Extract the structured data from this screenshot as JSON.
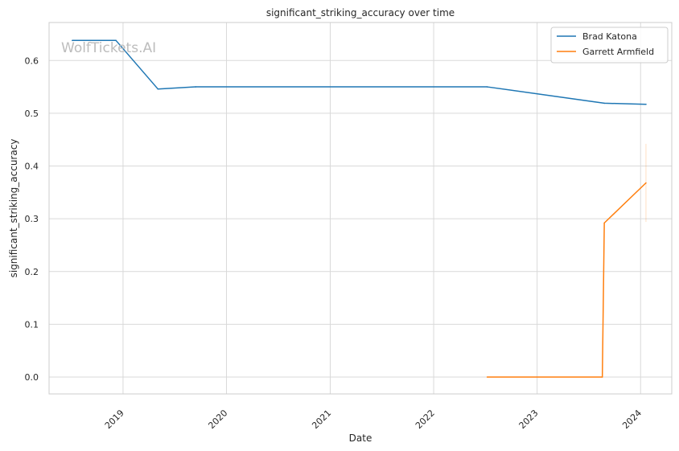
{
  "chart_data": {
    "type": "line",
    "title": "significant_striking_accuracy over time",
    "xlabel": "Date",
    "ylabel": "significant_striking_accuracy",
    "x_type": "date",
    "xlim": [
      "2018-04-15",
      "2024-04-20"
    ],
    "ylim": [
      -0.032,
      0.672
    ],
    "x_ticks": [
      {
        "date": "2019-01-01",
        "label": "2019"
      },
      {
        "date": "2020-01-01",
        "label": "2020"
      },
      {
        "date": "2021-01-01",
        "label": "2021"
      },
      {
        "date": "2022-01-01",
        "label": "2022"
      },
      {
        "date": "2023-01-01",
        "label": "2023"
      },
      {
        "date": "2024-01-01",
        "label": "2024"
      }
    ],
    "y_ticks": [
      0.0,
      0.1,
      0.2,
      0.3,
      0.4,
      0.5,
      0.6
    ],
    "y_tick_labels": [
      "0.0",
      "0.1",
      "0.2",
      "0.3",
      "0.4",
      "0.5",
      "0.6"
    ],
    "grid": true,
    "legend_position": "top-right",
    "watermark": "WolfTickets.AI",
    "series": [
      {
        "name": "Brad Katona",
        "color": "#1f77b4",
        "points": [
          {
            "x": "2018-07-06",
            "y": 0.638
          },
          {
            "x": "2018-12-07",
            "y": 0.638
          },
          {
            "x": "2019-05-04",
            "y": 0.546
          },
          {
            "x": "2019-09-14",
            "y": 0.55
          },
          {
            "x": "2022-07-09",
            "y": 0.55
          },
          {
            "x": "2023-08-26",
            "y": 0.519
          },
          {
            "x": "2024-01-20",
            "y": 0.517
          }
        ]
      },
      {
        "name": "Garrett Armfield",
        "color": "#ff7f0e",
        "points": [
          {
            "x": "2022-07-09",
            "y": 0.0
          },
          {
            "x": "2023-08-19",
            "y": 0.0
          },
          {
            "x": "2023-08-26",
            "y": 0.292
          },
          {
            "x": "2024-01-20",
            "y": 0.368
          }
        ],
        "error_band": {
          "x": "2024-01-20",
          "low": 0.294,
          "high": 0.442
        }
      }
    ]
  }
}
